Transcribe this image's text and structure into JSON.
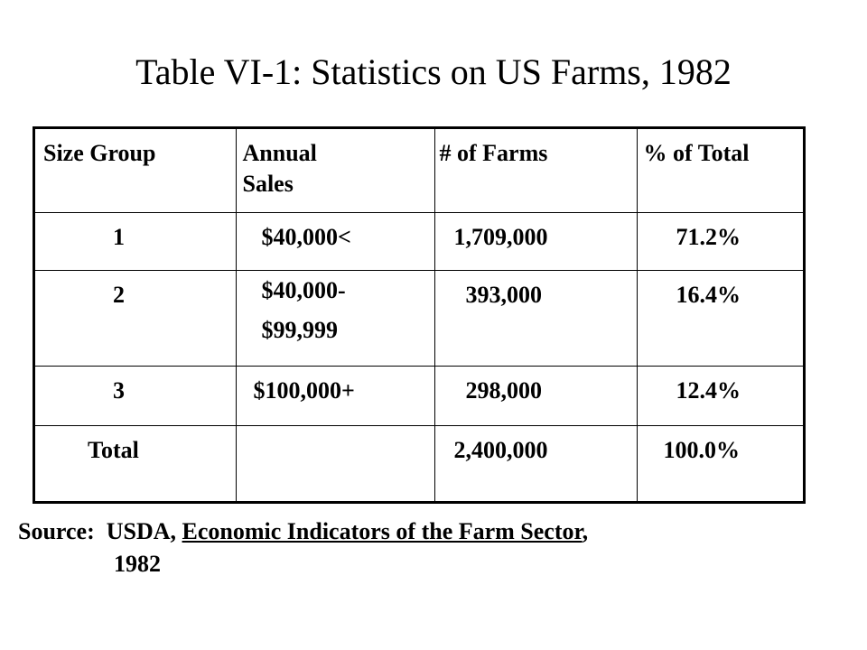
{
  "title": "Table VI-1: Statistics on US Farms, 1982",
  "table": {
    "headers": [
      "Size Group",
      "Annual Sales",
      "# of Farms",
      "% of Total"
    ],
    "header_lines": {
      "annual_sales": [
        "Annual",
        "Sales"
      ]
    },
    "rows": [
      {
        "group": "1",
        "sales": "$40,000<",
        "farms": "1,709,000",
        "pct": "71.2%"
      },
      {
        "group": "2",
        "sales_lines": [
          "$40,000-",
          "$99,999"
        ],
        "farms": "393,000",
        "pct": "16.4%"
      },
      {
        "group": "3",
        "sales": "$100,000+",
        "farms": "298,000",
        "pct": "12.4%"
      },
      {
        "group": "Total",
        "sales": "",
        "farms": "2,400,000",
        "pct": "100.0%"
      }
    ]
  },
  "source": {
    "prefix": "Source:  USDA, ",
    "publication": "Economic Indicators of the Farm Sector",
    "suffix": ",",
    "year": "1982"
  }
}
